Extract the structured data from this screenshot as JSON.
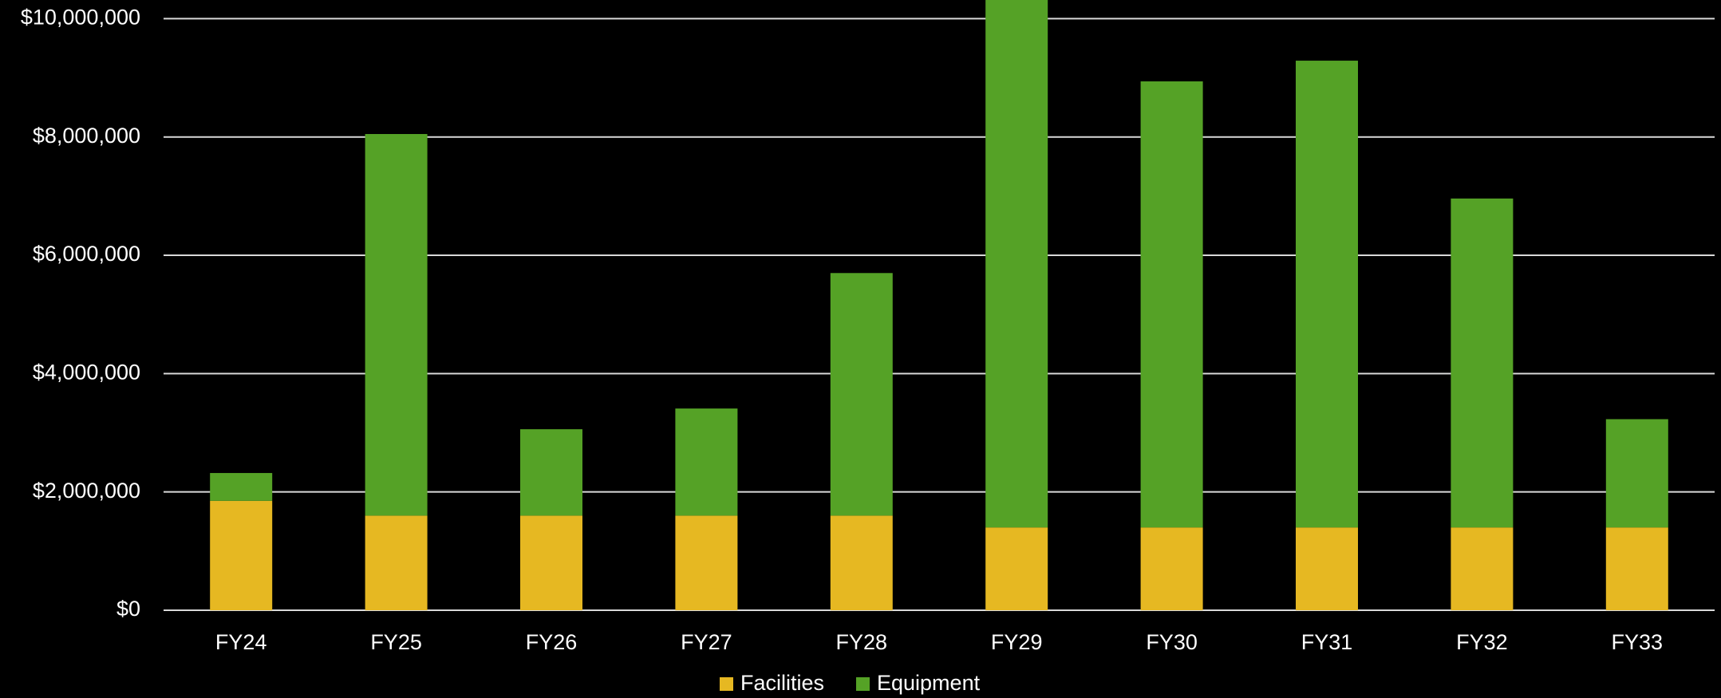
{
  "chart_data": {
    "type": "stacked_bar",
    "categories": [
      "FY24",
      "FY25",
      "FY26",
      "FY27",
      "FY28",
      "FY29",
      "FY30",
      "FY31",
      "FY32",
      "FY33"
    ],
    "series": [
      {
        "name": "Facilities",
        "color": "#e6b822",
        "values": [
          1850000,
          1600000,
          1600000,
          1600000,
          1600000,
          1400000,
          1400000,
          1400000,
          1400000,
          1400000
        ]
      },
      {
        "name": "Equipment",
        "color": "#55a226",
        "values": [
          470000,
          6450000,
          1460000,
          1810000,
          4100000,
          9000000,
          7540000,
          7890000,
          5560000,
          1830000
        ]
      }
    ],
    "ylim": [
      0,
      10000000
    ],
    "yticks": [
      {
        "value": 0,
        "label": "$0"
      },
      {
        "value": 2000000,
        "label": "$2,000,000"
      },
      {
        "value": 4000000,
        "label": "$4,000,000"
      },
      {
        "value": 6000000,
        "label": "$6,000,000"
      },
      {
        "value": 8000000,
        "label": "$8,000,000"
      },
      {
        "value": 10000000,
        "label": "$10,000,000"
      }
    ],
    "grid": true,
    "legend": "bottom"
  }
}
